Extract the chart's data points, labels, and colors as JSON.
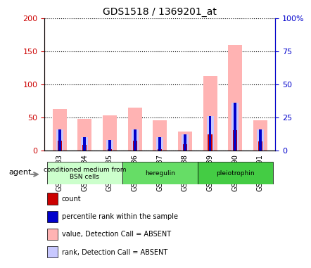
{
  "title": "GDS1518 / 1369201_at",
  "samples": [
    "GSM76383",
    "GSM76384",
    "GSM76385",
    "GSM76386",
    "GSM76387",
    "GSM76388",
    "GSM76389",
    "GSM76390",
    "GSM76391"
  ],
  "count_values": [
    14,
    8,
    2,
    14,
    2,
    9,
    24,
    30,
    13
  ],
  "rank_values": [
    16,
    10,
    8,
    16,
    10,
    12,
    26,
    36,
    16
  ],
  "value_absent": [
    62,
    48,
    53,
    65,
    45,
    28,
    113,
    160,
    45
  ],
  "rank_absent": [
    16,
    10,
    8,
    16,
    10,
    12,
    26,
    36,
    16
  ],
  "color_count": "#cc0000",
  "color_rank": "#0000cc",
  "color_value_absent": "#ffb3b3",
  "color_rank_absent": "#c8c8ff",
  "ylim_left": [
    0,
    200
  ],
  "ylim_right": [
    0,
    100
  ],
  "yticks_left": [
    0,
    50,
    100,
    150,
    200
  ],
  "yticks_right": [
    0,
    25,
    50,
    75,
    100
  ],
  "ytick_labels_left": [
    "0",
    "50",
    "100",
    "150",
    "200"
  ],
  "ytick_labels_right": [
    "0",
    "25",
    "50",
    "75",
    "100%"
  ],
  "groups": [
    {
      "label": "conditioned medium from\nBSN cells",
      "start": 0,
      "end": 3,
      "color": "#ccffcc"
    },
    {
      "label": "heregulin",
      "start": 3,
      "end": 6,
      "color": "#66dd66"
    },
    {
      "label": "pleiotrophin",
      "start": 6,
      "end": 9,
      "color": "#44cc44"
    }
  ],
  "legend_items": [
    {
      "color": "#cc0000",
      "label": "count"
    },
    {
      "color": "#0000cc",
      "label": "percentile rank within the sample"
    },
    {
      "color": "#ffb3b3",
      "label": "value, Detection Call = ABSENT"
    },
    {
      "color": "#c8c8ff",
      "label": "rank, Detection Call = ABSENT"
    }
  ],
  "bar_width": 0.35,
  "agent_label": "agent"
}
